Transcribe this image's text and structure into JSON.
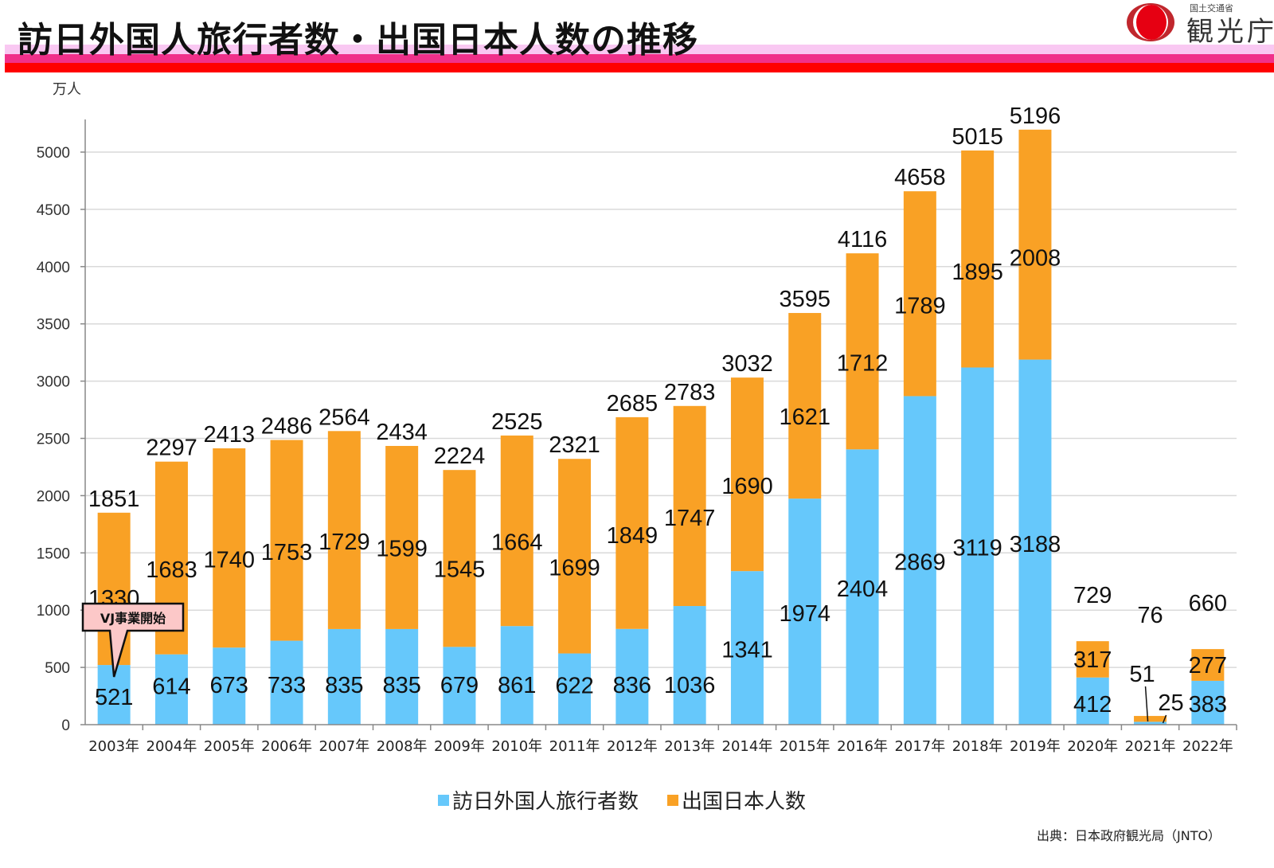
{
  "header": {
    "title": "訪日外国人旅行者数・出国日本人数の推移",
    "logo_small": "国土交通省",
    "logo_text": "観光庁"
  },
  "colors": {
    "inbound": "#66c8fb",
    "outbound": "#f9a125",
    "band_light": "#f9c8f2",
    "band_pink": "#f0308a",
    "band_red": "#ff0000",
    "callout_fill": "#fcc8c8"
  },
  "chart_data": {
    "type": "bar",
    "stacked": true,
    "title": "訪日外国人旅行者数・出国日本人数の推移",
    "ylabel": "万人",
    "xlabel": "",
    "ylim": [
      0,
      5200
    ],
    "yticks": [
      0,
      500,
      1000,
      1500,
      2000,
      2500,
      3000,
      3500,
      4000,
      4500,
      5000
    ],
    "grid": true,
    "legend_position": "bottom",
    "categories": [
      "2003年",
      "2004年",
      "2005年",
      "2006年",
      "2007年",
      "2008年",
      "2009年",
      "2010年",
      "2011年",
      "2012年",
      "2013年",
      "2014年",
      "2015年",
      "2016年",
      "2017年",
      "2018年",
      "2019年",
      "2020年",
      "2021年",
      "2022年"
    ],
    "series": [
      {
        "name": "訪日外国人旅行者数",
        "values": [
          521,
          614,
          673,
          733,
          835,
          835,
          679,
          861,
          622,
          836,
          1036,
          1341,
          1974,
          2404,
          2869,
          3119,
          3188,
          412,
          25,
          383
        ]
      },
      {
        "name": "出国日本人数",
        "values": [
          1330,
          1683,
          1740,
          1753,
          1729,
          1599,
          1545,
          1664,
          1699,
          1849,
          1747,
          1690,
          1621,
          1712,
          1789,
          1895,
          2008,
          317,
          51,
          277
        ]
      }
    ],
    "totals": [
      1851,
      2297,
      2413,
      2486,
      2564,
      2434,
      2224,
      2525,
      2321,
      2685,
      2783,
      3032,
      3595,
      4116,
      4658,
      5015,
      5196,
      729,
      76,
      660
    ],
    "annotations": [
      {
        "text": "VJ事業開始",
        "category": "2003年"
      }
    ]
  },
  "legend": {
    "items": [
      {
        "label": "訪日外国人旅行者数"
      },
      {
        "label": "出国日本人数"
      }
    ]
  },
  "source": "出典：日本政府観光局（JNTO）"
}
